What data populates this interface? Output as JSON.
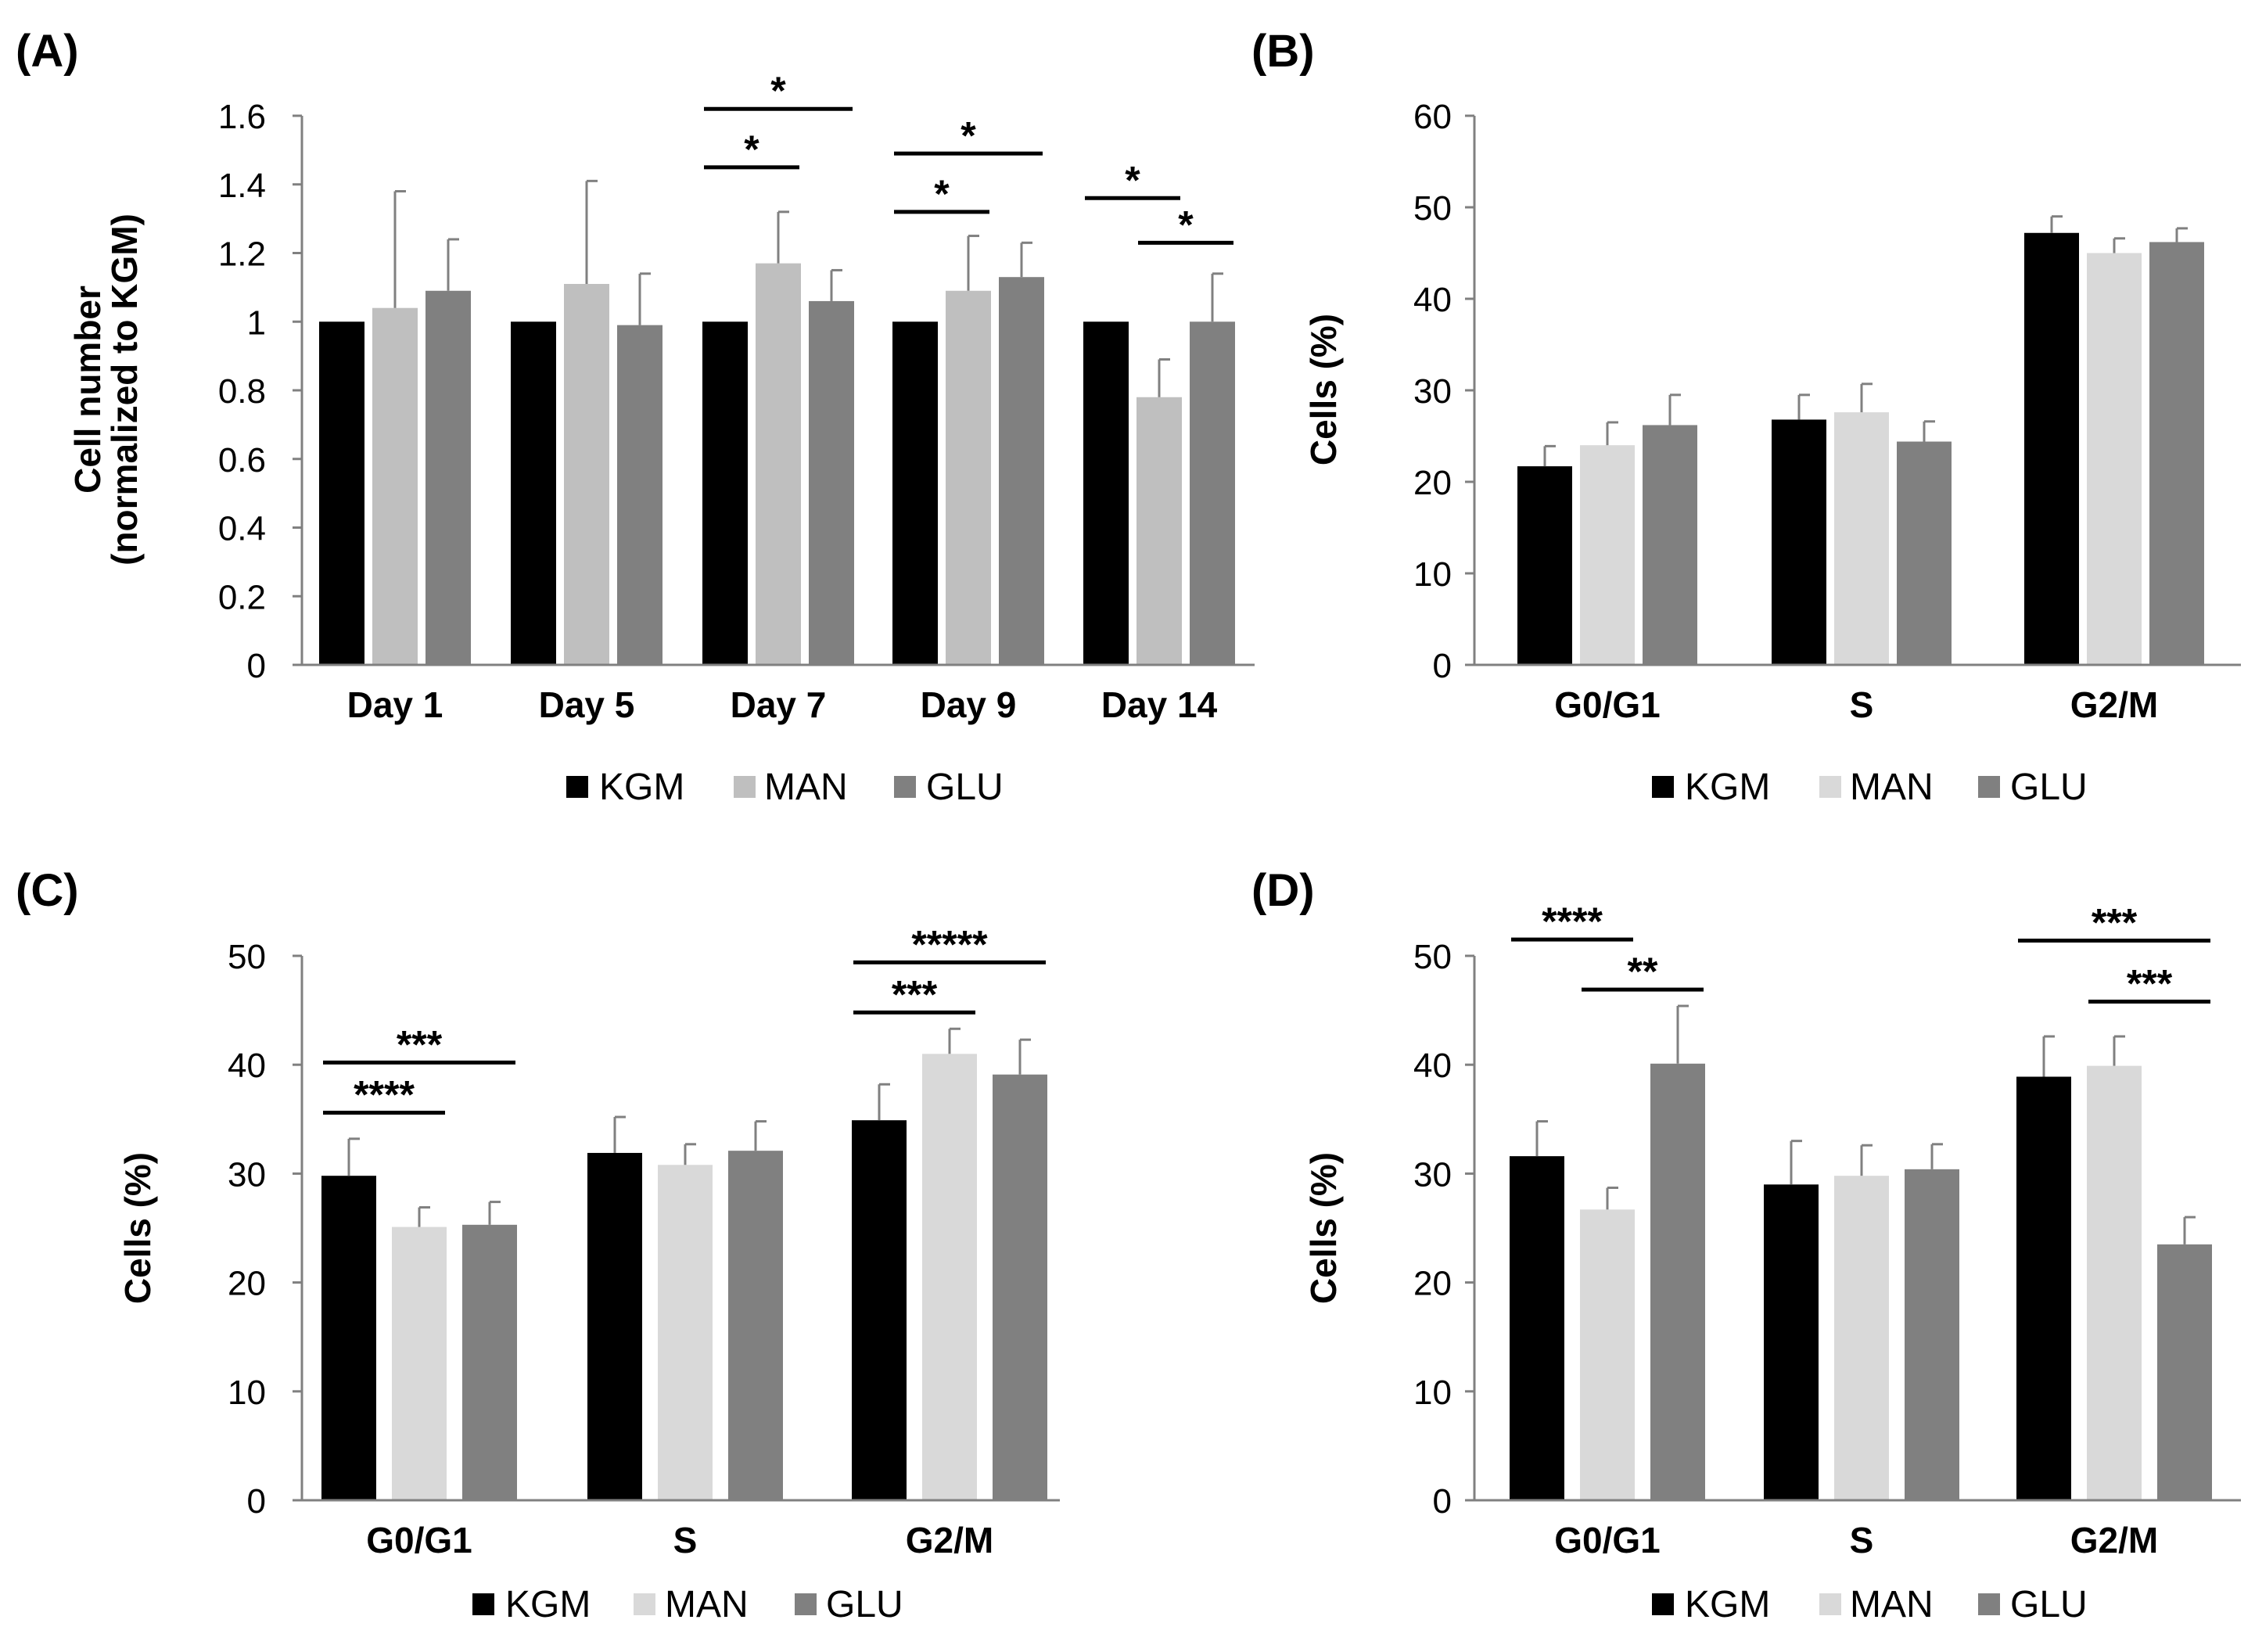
{
  "panels": [
    {
      "label": "(A)",
      "ylabel_lines": [
        "Cell number",
        "(normalized to KGM)"
      ]
    },
    {
      "label": "(B)",
      "ylabel_lines": [
        "Cells (%)"
      ]
    },
    {
      "label": "(C)",
      "ylabel_lines": [
        "Cells (%)"
      ]
    },
    {
      "label": "(D)",
      "ylabel_lines": [
        "Cells (%)"
      ]
    }
  ],
  "colors": {
    "KGM": "#000000",
    "MAN_A": "#bfbfbf",
    "MAN": "#d9d9d9",
    "GLU": "#808080",
    "axis": "#808080",
    "text": "#000000"
  },
  "chart_data": [
    {
      "type": "bar",
      "panel": "A",
      "title": "",
      "xlabel": "",
      "ylabel": "Cell number (normalized to KGM)",
      "categories": [
        "Day 1",
        "Day 5",
        "Day 7",
        "Day 9",
        "Day 14"
      ],
      "ylim": [
        0,
        1.6
      ],
      "yticks": [
        "0",
        "0.2",
        "0.4",
        "0.6",
        "0.8",
        "1",
        "1.2",
        "1.4",
        "1.6"
      ],
      "ytick_values": [
        0,
        0.2,
        0.4,
        0.6,
        0.8,
        1,
        1.2,
        1.4,
        1.6
      ],
      "legend": "bottom",
      "series": [
        {
          "name": "KGM",
          "color": "#000000",
          "values": [
            1,
            1,
            1,
            1,
            1
          ],
          "errors": [
            0,
            0,
            0,
            0,
            0
          ]
        },
        {
          "name": "MAN",
          "color": "#bfbfbf",
          "values": [
            1.04,
            1.11,
            1.17,
            1.09,
            0.78
          ],
          "errors": [
            0.34,
            0.3,
            0.15,
            0.16,
            0.11
          ]
        },
        {
          "name": "GLU",
          "color": "#808080",
          "values": [
            1.09,
            0.99,
            1.06,
            1.13,
            1.0
          ],
          "errors": [
            0.15,
            0.15,
            0.09,
            0.1,
            0.14
          ]
        }
      ],
      "significance": [
        {
          "category": 2,
          "from": 0,
          "to": 1,
          "label": "*",
          "y": 1.45
        },
        {
          "category": 2,
          "from": 0,
          "to": 2,
          "label": "*",
          "y": 1.62
        },
        {
          "category": 3,
          "from": 0,
          "to": 1,
          "label": "*",
          "y": 1.32
        },
        {
          "category": 3,
          "from": 0,
          "to": 2,
          "label": "*",
          "y": 1.49
        },
        {
          "category": 4,
          "from": 0,
          "to": 1,
          "label": "*",
          "y": 1.36
        },
        {
          "category": 4,
          "from": 1,
          "to": 2,
          "label": "*",
          "y": 1.23
        }
      ]
    },
    {
      "type": "bar",
      "panel": "B",
      "title": "",
      "xlabel": "",
      "ylabel": "Cells (%)",
      "categories": [
        "G0/G1",
        "S",
        "G2/M"
      ],
      "ylim": [
        0,
        60
      ],
      "yticks": [
        "0",
        "10",
        "20",
        "30",
        "40",
        "50",
        "60"
      ],
      "ytick_values": [
        0,
        10,
        20,
        30,
        40,
        50,
        60
      ],
      "legend": "bottom",
      "series": [
        {
          "name": "KGM",
          "color": "#000000",
          "values": [
            21.7,
            26.8,
            47.2
          ],
          "errors": [
            2.2,
            2.7,
            1.8
          ]
        },
        {
          "name": "MAN",
          "color": "#d9d9d9",
          "values": [
            24.0,
            27.6,
            45.0
          ],
          "errors": [
            2.5,
            3.1,
            1.6
          ]
        },
        {
          "name": "GLU",
          "color": "#808080",
          "values": [
            26.2,
            24.4,
            46.2
          ],
          "errors": [
            3.3,
            2.2,
            1.5
          ]
        }
      ],
      "significance": []
    },
    {
      "type": "bar",
      "panel": "C",
      "title": "",
      "xlabel": "",
      "ylabel": "Cells (%)",
      "categories": [
        "G0/G1",
        "S",
        "G2/M"
      ],
      "ylim": [
        0,
        50
      ],
      "yticks": [
        "0",
        "10",
        "20",
        "30",
        "40",
        "50"
      ],
      "ytick_values": [
        0,
        10,
        20,
        30,
        40,
        50
      ],
      "legend": "bottom",
      "series": [
        {
          "name": "KGM",
          "color": "#000000",
          "values": [
            29.8,
            31.9,
            34.9
          ],
          "errors": [
            3.4,
            3.3,
            3.3
          ]
        },
        {
          "name": "MAN",
          "color": "#d9d9d9",
          "values": [
            25.1,
            30.8,
            41.0
          ],
          "errors": [
            1.8,
            1.9,
            2.3
          ]
        },
        {
          "name": "GLU",
          "color": "#808080",
          "values": [
            25.3,
            32.1,
            39.1
          ],
          "errors": [
            2.1,
            2.7,
            3.2
          ]
        }
      ],
      "significance": [
        {
          "category": 0,
          "from": 0,
          "to": 1,
          "label": "****",
          "y": 35.6
        },
        {
          "category": 0,
          "from": 0,
          "to": 2,
          "label": "***",
          "y": 40.2
        },
        {
          "category": 2,
          "from": 0,
          "to": 1,
          "label": "***",
          "y": 44.8
        },
        {
          "category": 2,
          "from": 0,
          "to": 2,
          "label": "*****",
          "y": 49.4
        }
      ]
    },
    {
      "type": "bar",
      "panel": "D",
      "title": "",
      "xlabel": "",
      "ylabel": "Cells (%)",
      "categories": [
        "G0/G1",
        "S",
        "G2/M"
      ],
      "ylim": [
        0,
        50
      ],
      "yticks": [
        "0",
        "10",
        "20",
        "30",
        "40",
        "50"
      ],
      "ytick_values": [
        0,
        10,
        20,
        30,
        40,
        50
      ],
      "legend": "bottom",
      "series": [
        {
          "name": "KGM",
          "color": "#000000",
          "values": [
            31.6,
            29.0,
            38.9
          ],
          "errors": [
            3.2,
            4.0,
            3.7
          ]
        },
        {
          "name": "MAN",
          "color": "#d9d9d9",
          "values": [
            26.7,
            29.8,
            39.9
          ],
          "errors": [
            2.0,
            2.8,
            2.7
          ]
        },
        {
          "name": "GLU",
          "color": "#808080",
          "values": [
            40.1,
            30.4,
            23.5
          ],
          "errors": [
            5.3,
            2.3,
            2.5
          ]
        }
      ],
      "significance": [
        {
          "category": 0,
          "from": 0,
          "to": 1,
          "label": "****",
          "y": 51.5
        },
        {
          "category": 0,
          "from": 1,
          "to": 2,
          "label": "**",
          "y": 46.9
        },
        {
          "category": 2,
          "from": 0,
          "to": 2,
          "label": "***",
          "y": 51.4
        },
        {
          "category": 2,
          "from": 1,
          "to": 2,
          "label": "***",
          "y": 45.8
        }
      ]
    }
  ]
}
